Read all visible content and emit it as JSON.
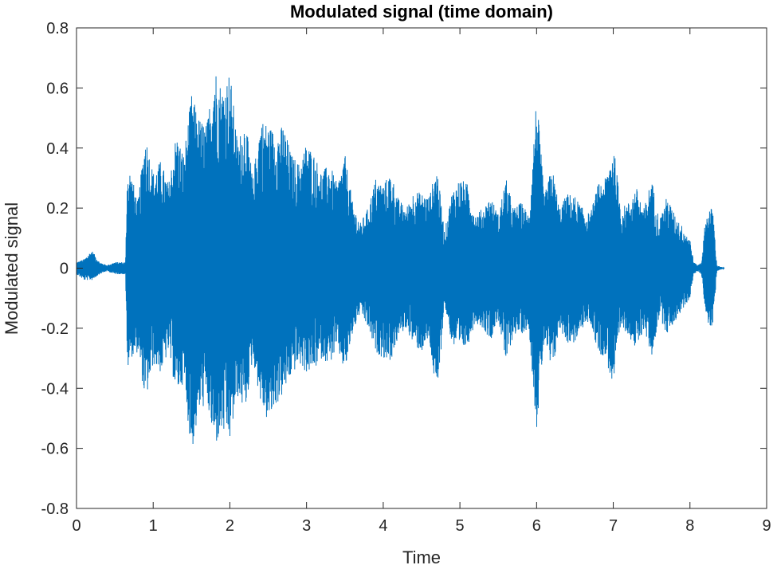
{
  "chart_data": {
    "type": "line",
    "title": "Modulated signal (time domain)",
    "xlabel": "Time",
    "ylabel": "Modulated signal",
    "xlim": [
      0,
      9
    ],
    "ylim": [
      -0.8,
      0.8
    ],
    "xticks": [
      0,
      1,
      2,
      3,
      4,
      5,
      6,
      7,
      8,
      9
    ],
    "xtick_labels": [
      "0",
      "1",
      "2",
      "3",
      "4",
      "5",
      "6",
      "7",
      "8",
      "9"
    ],
    "yticks": [
      -0.8,
      -0.6,
      -0.4,
      -0.2,
      0,
      0.2,
      0.4,
      0.6,
      0.8
    ],
    "ytick_labels": [
      "-0.8",
      "-0.6",
      "-0.4",
      "-0.2",
      "0",
      "0.2",
      "0.4",
      "0.6",
      "0.8"
    ],
    "grid": false,
    "line_color": "#0072BD",
    "series": [
      {
        "envelope_time": [
          0,
          0.1,
          0.2,
          0.3,
          0.4,
          0.5,
          0.58,
          0.64,
          0.66,
          0.7,
          0.8,
          0.9,
          1.0,
          1.1,
          1.2,
          1.3,
          1.4,
          1.5,
          1.6,
          1.7,
          1.8,
          1.9,
          2.0,
          2.1,
          2.2,
          2.3,
          2.4,
          2.5,
          2.6,
          2.7,
          2.8,
          2.9,
          3.0,
          3.1,
          3.2,
          3.3,
          3.4,
          3.5,
          3.6,
          3.7,
          3.8,
          3.9,
          4.0,
          4.1,
          4.2,
          4.3,
          4.4,
          4.5,
          4.6,
          4.7,
          4.8,
          4.9,
          5.0,
          5.1,
          5.2,
          5.3,
          5.4,
          5.5,
          5.6,
          5.7,
          5.8,
          5.9,
          6.0,
          6.1,
          6.2,
          6.3,
          6.4,
          6.5,
          6.6,
          6.7,
          6.8,
          6.9,
          7.0,
          7.1,
          7.2,
          7.3,
          7.4,
          7.5,
          7.6,
          7.7,
          7.8,
          7.9,
          8.0,
          8.05,
          8.1,
          8.15,
          8.2,
          8.25,
          8.3,
          8.35,
          8.45
        ],
        "envelope_max": [
          0.02,
          0.03,
          0.06,
          0.02,
          0.01,
          0.02,
          0.02,
          0.02,
          0.32,
          0.33,
          0.22,
          0.45,
          0.32,
          0.36,
          0.28,
          0.45,
          0.38,
          0.58,
          0.5,
          0.48,
          0.68,
          0.6,
          0.66,
          0.42,
          0.5,
          0.3,
          0.5,
          0.48,
          0.45,
          0.48,
          0.38,
          0.35,
          0.42,
          0.38,
          0.32,
          0.35,
          0.28,
          0.38,
          0.22,
          0.15,
          0.2,
          0.3,
          0.28,
          0.32,
          0.23,
          0.2,
          0.26,
          0.25,
          0.24,
          0.34,
          0.12,
          0.26,
          0.3,
          0.28,
          0.18,
          0.2,
          0.24,
          0.18,
          0.3,
          0.2,
          0.22,
          0.18,
          0.58,
          0.24,
          0.34,
          0.2,
          0.25,
          0.24,
          0.2,
          0.18,
          0.28,
          0.3,
          0.42,
          0.2,
          0.22,
          0.27,
          0.2,
          0.3,
          0.16,
          0.24,
          0.18,
          0.14,
          0.1,
          0.02,
          0.01,
          0.02,
          0.16,
          0.2,
          0.2,
          0.01,
          0.0
        ],
        "envelope_min": [
          -0.02,
          -0.04,
          -0.04,
          -0.02,
          -0.01,
          -0.02,
          -0.02,
          -0.02,
          -0.35,
          -0.3,
          -0.28,
          -0.45,
          -0.32,
          -0.35,
          -0.28,
          -0.42,
          -0.38,
          -0.62,
          -0.48,
          -0.45,
          -0.6,
          -0.55,
          -0.58,
          -0.43,
          -0.48,
          -0.3,
          -0.45,
          -0.52,
          -0.46,
          -0.42,
          -0.36,
          -0.32,
          -0.35,
          -0.34,
          -0.3,
          -0.32,
          -0.27,
          -0.35,
          -0.22,
          -0.15,
          -0.2,
          -0.28,
          -0.3,
          -0.31,
          -0.23,
          -0.2,
          -0.26,
          -0.28,
          -0.24,
          -0.45,
          -0.12,
          -0.26,
          -0.28,
          -0.26,
          -0.18,
          -0.2,
          -0.24,
          -0.17,
          -0.32,
          -0.22,
          -0.22,
          -0.2,
          -0.54,
          -0.24,
          -0.36,
          -0.2,
          -0.25,
          -0.25,
          -0.2,
          -0.18,
          -0.28,
          -0.3,
          -0.4,
          -0.2,
          -0.22,
          -0.28,
          -0.2,
          -0.3,
          -0.16,
          -0.22,
          -0.18,
          -0.14,
          -0.1,
          -0.02,
          -0.01,
          -0.02,
          -0.14,
          -0.2,
          -0.2,
          -0.01,
          0.0
        ]
      }
    ]
  }
}
